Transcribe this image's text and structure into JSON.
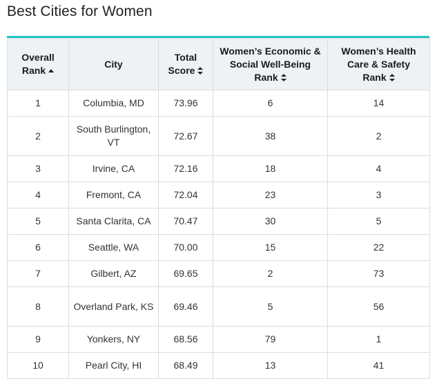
{
  "title": "Best Cities for Women",
  "colors": {
    "accent": "#1ec6c6",
    "header_bg": "#eef2f5"
  },
  "table": {
    "headers": [
      {
        "label": "Overall\nRank",
        "sort": "asc"
      },
      {
        "label": "City",
        "sort": "none"
      },
      {
        "label": "Total\nScore",
        "sort": "both"
      },
      {
        "label": "Women’s Economic &\nSocial Well-Being\nRank",
        "sort": "both"
      },
      {
        "label": "Women’s Health\nCare & Safety\nRank",
        "sort": "both"
      }
    ],
    "rows": [
      [
        "1",
        "Columbia, MD",
        "73.96",
        "6",
        "14"
      ],
      [
        "2",
        "South Burlington, VT",
        "72.67",
        "38",
        "2"
      ],
      [
        "3",
        "Irvine, CA",
        "72.16",
        "18",
        "4"
      ],
      [
        "4",
        "Fremont, CA",
        "72.04",
        "23",
        "3"
      ],
      [
        "5",
        "Santa Clarita, CA",
        "70.47",
        "30",
        "5"
      ],
      [
        "6",
        "Seattle, WA",
        "70.00",
        "15",
        "22"
      ],
      [
        "7",
        "Gilbert, AZ",
        "69.65",
        "2",
        "73"
      ],
      [
        "8",
        "Overland Park, KS",
        "69.46",
        "5",
        "56"
      ],
      [
        "9",
        "Yonkers, NY",
        "68.56",
        "79",
        "1"
      ],
      [
        "10",
        "Pearl City, HI",
        "68.49",
        "13",
        "41"
      ]
    ]
  }
}
